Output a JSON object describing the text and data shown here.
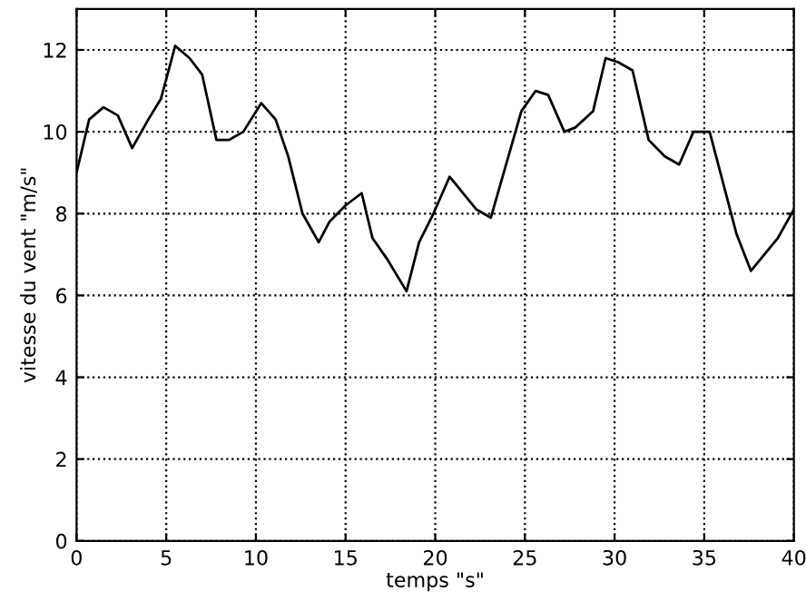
{
  "chart_data": {
    "type": "line",
    "xlabel": "temps \"s\"",
    "ylabel": "vitesse du vent \"m/s\"",
    "xlim": [
      0,
      40
    ],
    "ylim": [
      0,
      13
    ],
    "xticks": [
      0,
      5,
      10,
      15,
      20,
      25,
      30,
      35,
      40
    ],
    "yticks": [
      0,
      2,
      4,
      6,
      8,
      10,
      12
    ],
    "grid": true,
    "line_style": "solid",
    "marker": "none",
    "series": [
      {
        "color": "#000000",
        "x": [
          0,
          0.7,
          1.5,
          2.3,
          3.1,
          4.0,
          4.7,
          5.5,
          6.3,
          7.0,
          7.8,
          8.5,
          9.3,
          10.3,
          11.1,
          11.8,
          12.6,
          13.5,
          14.1,
          15.0,
          15.9,
          16.5,
          17.3,
          18.4,
          19.1,
          19.9,
          20.8,
          22.3,
          23.1,
          24.8,
          25.6,
          26.3,
          27.2,
          27.8,
          28.8,
          29.5,
          30.2,
          31.0,
          31.9,
          32.8,
          33.6,
          34.4,
          35.3,
          35.9,
          36.8,
          37.6,
          39.1,
          40
        ],
        "values": [
          9.0,
          10.3,
          10.6,
          10.4,
          9.6,
          10.3,
          10.8,
          12.1,
          11.8,
          11.4,
          9.8,
          9.8,
          10.0,
          10.7,
          10.3,
          9.4,
          8.0,
          7.3,
          7.8,
          8.2,
          8.5,
          7.4,
          6.9,
          6.1,
          7.3,
          8.0,
          8.9,
          8.1,
          7.9,
          10.5,
          11.0,
          10.9,
          10.0,
          10.1,
          10.5,
          11.8,
          11.7,
          11.5,
          9.8,
          9.4,
          9.2,
          10.0,
          10.0,
          9.0,
          7.5,
          6.6,
          7.4,
          8.1
        ]
      }
    ]
  }
}
